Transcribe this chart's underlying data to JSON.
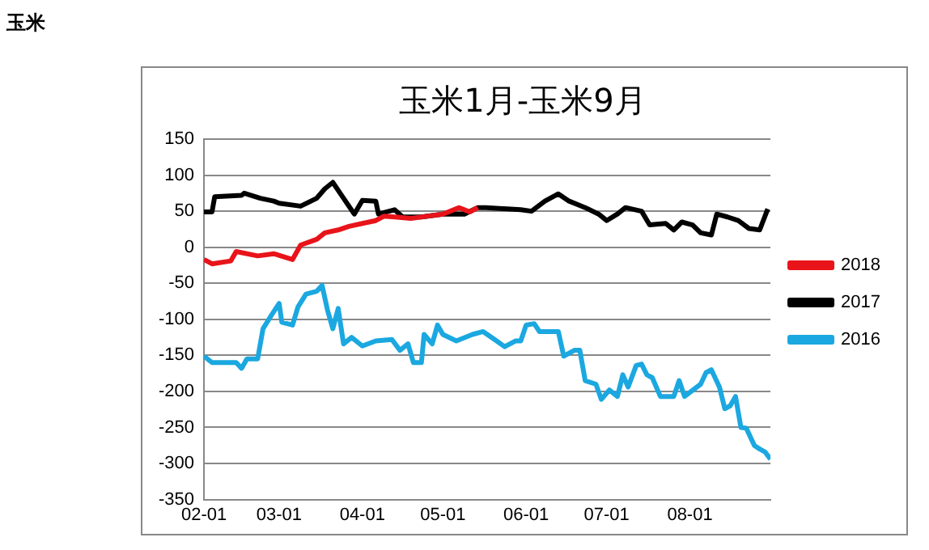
{
  "chart_data": {
    "type": "line",
    "title": "玉米1月-玉米9月",
    "annotations": [
      "玉米"
    ],
    "xlim": [
      "--02-01",
      "--08-31"
    ],
    "xticks": [
      {
        "value": "--02-01",
        "label": "02-01"
      },
      {
        "value": "--03-01",
        "label": "03-01"
      },
      {
        "value": "--04-01",
        "label": "04-01"
      },
      {
        "value": "--05-01",
        "label": "05-01"
      },
      {
        "value": "--06-01",
        "label": "06-01"
      },
      {
        "value": "--07-01",
        "label": "07-01"
      },
      {
        "value": "--08-01",
        "label": "08-01"
      }
    ],
    "ylim": [
      -350,
      150
    ],
    "yticks": [
      -350,
      -300,
      -250,
      -200,
      -150,
      -100,
      -50,
      0,
      50,
      100,
      150
    ],
    "grid": "y",
    "legend": "right",
    "marker": "none",
    "line_style": "solid",
    "series": [
      {
        "name": "2018",
        "color": "#e8141a",
        "x": [
          "--02-01",
          "--02-04",
          "--02-11",
          "--02-13",
          "--02-21",
          "--02-27",
          "--03-06",
          "--03-09",
          "--03-15",
          "--03-18",
          "--03-23",
          "--03-27",
          "--04-01",
          "--04-06",
          "--04-09",
          "--04-13",
          "--04-19",
          "--04-25",
          "--05-01",
          "--05-07",
          "--05-11",
          "--05-14"
        ],
        "values": [
          -17,
          -23,
          -19,
          -6,
          -12,
          -9,
          -17,
          3,
          11,
          20,
          24,
          29,
          33,
          37,
          43,
          42,
          40,
          43,
          46,
          55,
          49,
          55
        ]
      },
      {
        "name": "2017",
        "color": "#000000",
        "x": [
          "--02-01",
          "--02-04",
          "--02-05",
          "--02-15",
          "--02-16",
          "--02-22",
          "--02-27",
          "--03-01",
          "--03-09",
          "--03-15",
          "--03-18",
          "--03-21",
          "--03-25",
          "--03-29",
          "--04-01",
          "--04-06",
          "--04-07",
          "--04-13",
          "--04-16",
          "--04-23",
          "--05-01",
          "--05-09",
          "--05-14",
          "--05-17",
          "--05-30",
          "--06-03",
          "--06-08",
          "--06-13",
          "--06-17",
          "--06-23",
          "--06-28",
          "--07-01",
          "--07-05",
          "--07-08",
          "--07-14",
          "--07-17",
          "--07-23",
          "--07-26",
          "--07-29",
          "--08-02",
          "--08-05",
          "--08-09",
          "--08-11",
          "--08-15",
          "--08-19",
          "--08-23",
          "--08-27",
          "--08-30"
        ],
        "values": [
          49,
          49,
          70,
          72,
          75,
          68,
          64,
          61,
          57,
          68,
          81,
          90,
          68,
          46,
          65,
          64,
          46,
          52,
          42,
          42,
          46,
          46,
          55,
          55,
          52,
          50,
          64,
          74,
          64,
          55,
          46,
          37,
          46,
          55,
          50,
          31,
          33,
          24,
          35,
          31,
          20,
          17,
          46,
          42,
          37,
          26,
          24,
          53
        ]
      },
      {
        "name": "2016",
        "color": "#1ba8e0",
        "x": [
          "--02-01",
          "--02-04",
          "--02-13",
          "--02-15",
          "--02-17",
          "--02-21",
          "--02-23",
          "--02-26",
          "--03-01",
          "--03-02",
          "--03-06",
          "--03-08",
          "--03-11",
          "--03-15",
          "--03-17",
          "--03-19",
          "--03-21",
          "--03-23",
          "--03-25",
          "--03-28",
          "--04-01",
          "--04-06",
          "--04-12",
          "--04-15",
          "--04-18",
          "--04-20",
          "--04-23",
          "--04-24",
          "--04-27",
          "--04-29",
          "--05-01",
          "--05-06",
          "--05-12",
          "--05-16",
          "--05-21",
          "--05-24",
          "--05-28",
          "--05-30",
          "--06-01",
          "--06-04",
          "--06-06",
          "--06-13",
          "--06-15",
          "--06-19",
          "--06-21",
          "--06-23",
          "--06-27",
          "--06-29",
          "--07-02",
          "--07-05",
          "--07-07",
          "--07-09",
          "--07-12",
          "--07-14",
          "--07-16",
          "--07-18",
          "--07-21",
          "--07-26",
          "--07-28",
          "--07-30",
          "--08-05",
          "--08-07",
          "--08-09",
          "--08-12",
          "--08-14",
          "--08-16",
          "--08-18",
          "--08-20",
          "--08-22",
          "--08-25",
          "--08-27",
          "--08-29",
          "--08-31"
        ],
        "values": [
          -151,
          -160,
          -160,
          -168,
          -155,
          -155,
          -113,
          -95,
          -78,
          -104,
          -108,
          -83,
          -65,
          -61,
          -53,
          -87,
          -113,
          -85,
          -134,
          -125,
          -137,
          -130,
          -128,
          -143,
          -134,
          -160,
          -160,
          -121,
          -134,
          -108,
          -121,
          -130,
          -121,
          -117,
          -130,
          -138,
          -130,
          -130,
          -108,
          -106,
          -117,
          -117,
          -151,
          -143,
          -143,
          -185,
          -190,
          -211,
          -198,
          -207,
          -177,
          -194,
          -164,
          -162,
          -177,
          -181,
          -207,
          -207,
          -185,
          -207,
          -190,
          -174,
          -170,
          -194,
          -224,
          -220,
          -207,
          -250,
          -251,
          -275,
          -280,
          -284,
          -294
        ]
      }
    ]
  }
}
